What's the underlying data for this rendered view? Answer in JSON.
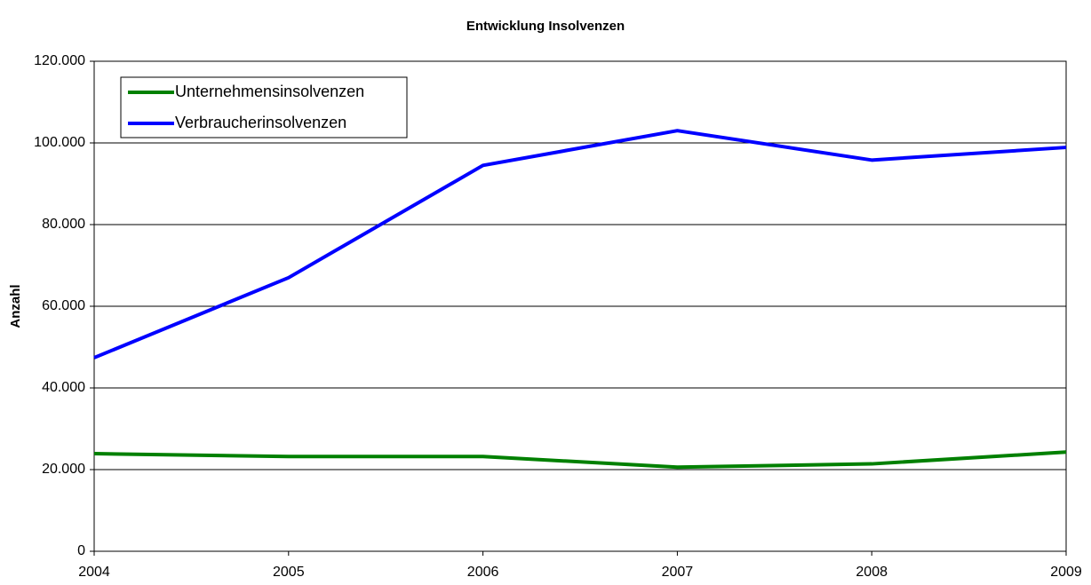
{
  "chart_data": {
    "type": "line",
    "title": "Entwicklung Insolvenzen",
    "y_label": "Anzahl",
    "categories": [
      "2004",
      "2005",
      "2006",
      "2007",
      "2008",
      "2009"
    ],
    "series": [
      {
        "name": "Unternehmensinsolvenzen",
        "color": "#008000",
        "values": [
          23900,
          23200,
          23200,
          20600,
          21400,
          24300
        ]
      },
      {
        "name": "Verbraucherinsolvenzen",
        "color": "#0000ff",
        "values": [
          47400,
          67000,
          94500,
          103000,
          95800,
          98900
        ]
      }
    ],
    "ylim": [
      0,
      120000
    ],
    "yticks": [
      0,
      {
        "value": 20000,
        "label": "20.000"
      },
      {
        "value": 40000,
        "label": "40.000"
      },
      {
        "value": 60000,
        "label": "60.000"
      },
      {
        "value": 80000,
        "label": "80.000"
      },
      {
        "value": 100000,
        "label": "100.000"
      },
      {
        "value": 120000,
        "label": "120.000"
      }
    ],
    "grid": true,
    "legend": "upper left"
  }
}
